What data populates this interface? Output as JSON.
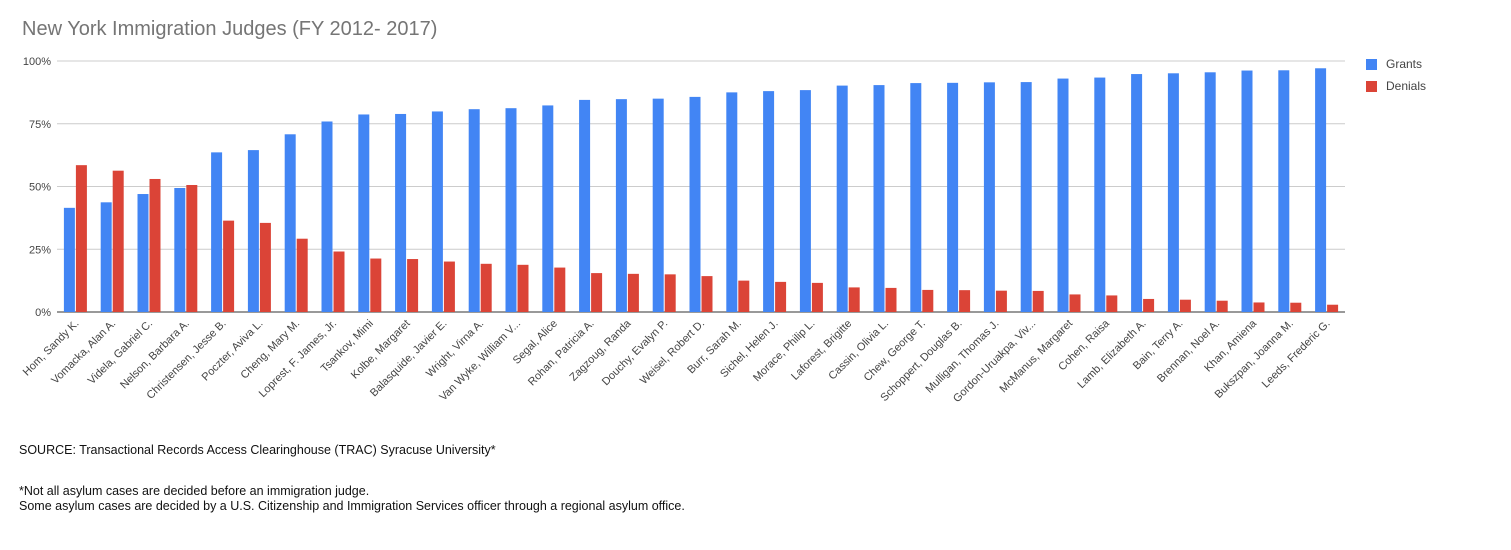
{
  "chart_data": {
    "type": "bar",
    "title": "New York Immigration Judges (FY 2012- 2017)",
    "xlabel": "",
    "ylabel": "",
    "ylim": [
      0,
      100
    ],
    "yticks": [
      "0%",
      "25%",
      "50%",
      "75%",
      "100%"
    ],
    "grid": true,
    "legend_position": "right",
    "categories": [
      "Hom, Sandy K.",
      "Vomacka, Alan A.",
      "Videla, Gabriel C.",
      "Nelson, Barbara A.",
      "Christensen, Jesse B.",
      "Poczter, Aviva L.",
      "Cheng, Mary M.",
      "Loprest, F. James, Jr.",
      "Tsankov, Mimi",
      "Kolbe, Margaret",
      "Balasquide, Javier E.",
      "Wright, Virna A.",
      "Van Wyke, William V...",
      "Segal, Alice",
      "Rohan, Patricia A.",
      "Zagzoug, Randa",
      "Douchy, Evalyn P.",
      "Weisel, Robert D.",
      "Burr, Sarah M.",
      "Sichel, Helen J.",
      "Morace, Philip L.",
      "Laforest, Brigitte",
      "Cassin, Olivia L.",
      "Chew, George T.",
      "Schoppert, Douglas B.",
      "Mulligan, Thomas J.",
      "Gordon-Uruakpa, Viv...",
      "McManus, Margaret",
      "Cohen, Raisa",
      "Lamb, Elizabeth A.",
      "Bain, Terry A.",
      "Brennan, Noel A.",
      "Khan, Amiena",
      "Bukszpan, Joanna M.",
      "Leeds, Frederic G."
    ],
    "series": [
      {
        "name": "Grants",
        "color": "#4285f4",
        "values": [
          41.5,
          43.7,
          47,
          49.4,
          63.6,
          64.5,
          70.8,
          75.9,
          78.7,
          78.9,
          79.9,
          80.8,
          81.2,
          82.3,
          84.5,
          84.8,
          85,
          85.7,
          87.5,
          88,
          88.4,
          90.2,
          90.4,
          91.2,
          91.3,
          91.5,
          91.6,
          93,
          93.4,
          94.8,
          95.1,
          95.5,
          96.2,
          96.3,
          97.1
        ]
      },
      {
        "name": "Denials",
        "color": "#db4437",
        "values": [
          58.5,
          56.3,
          53,
          50.6,
          36.4,
          35.5,
          29.2,
          24.1,
          21.3,
          21.1,
          20.1,
          19.2,
          18.8,
          17.7,
          15.5,
          15.2,
          15,
          14.3,
          12.5,
          12,
          11.6,
          9.8,
          9.6,
          8.8,
          8.7,
          8.5,
          8.4,
          7,
          6.6,
          5.2,
          4.9,
          4.5,
          3.8,
          3.7,
          2.9
        ]
      }
    ]
  },
  "footer": {
    "source": "SOURCE: Transactional Records Access Clearinghouse (TRAC) Syracuse University*",
    "note_line1": "*Not all asylum cases are decided before an immigration judge.",
    "note_line2": "Some asylum cases are decided by a U.S. Citizenship and Immigration Services officer through a regional asylum office."
  }
}
